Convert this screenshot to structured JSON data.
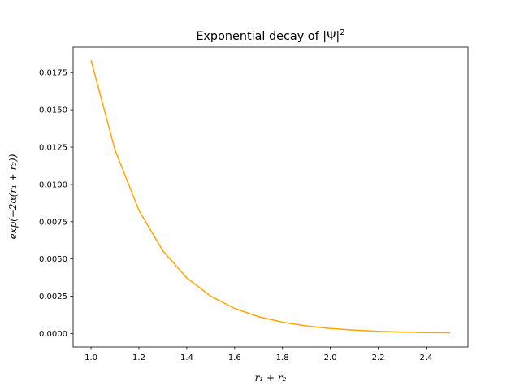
{
  "chart_data": {
    "type": "line",
    "title": "Exponential decay of |Ψ|",
    "title_superscript": "2",
    "xlabel": "r₁ + r₂",
    "ylabel": "exp(−2α(r₁ + r₂))",
    "xlim": [
      0.925,
      2.575
    ],
    "ylim": [
      -0.0009,
      0.0192
    ],
    "xticks": [
      1.0,
      1.2,
      1.4,
      1.6,
      1.8,
      2.0,
      2.2,
      2.4
    ],
    "xtick_labels": [
      "1.0",
      "1.2",
      "1.4",
      "1.6",
      "1.8",
      "2.0",
      "2.2",
      "2.4"
    ],
    "yticks": [
      0.0,
      0.0025,
      0.005,
      0.0075,
      0.01,
      0.0125,
      0.015,
      0.0175
    ],
    "ytick_labels": [
      "0.0000",
      "0.0025",
      "0.0050",
      "0.0075",
      "0.0100",
      "0.0125",
      "0.0150",
      "0.0175"
    ],
    "grid": false,
    "series": [
      {
        "color": "#ffa500",
        "x": [
          1.0,
          1.1,
          1.2,
          1.3,
          1.4,
          1.5,
          1.6,
          1.7,
          1.8,
          1.9,
          2.0,
          2.1,
          2.2,
          2.3,
          2.4,
          2.5
        ],
        "y": [
          0.01832,
          0.01231,
          0.00826,
          0.00555,
          0.00373,
          0.0025,
          0.00168,
          0.00113,
          0.00076,
          0.00051,
          0.00034,
          0.00023,
          0.00015,
          0.0001,
          7e-05,
          5e-05
        ]
      }
    ]
  }
}
